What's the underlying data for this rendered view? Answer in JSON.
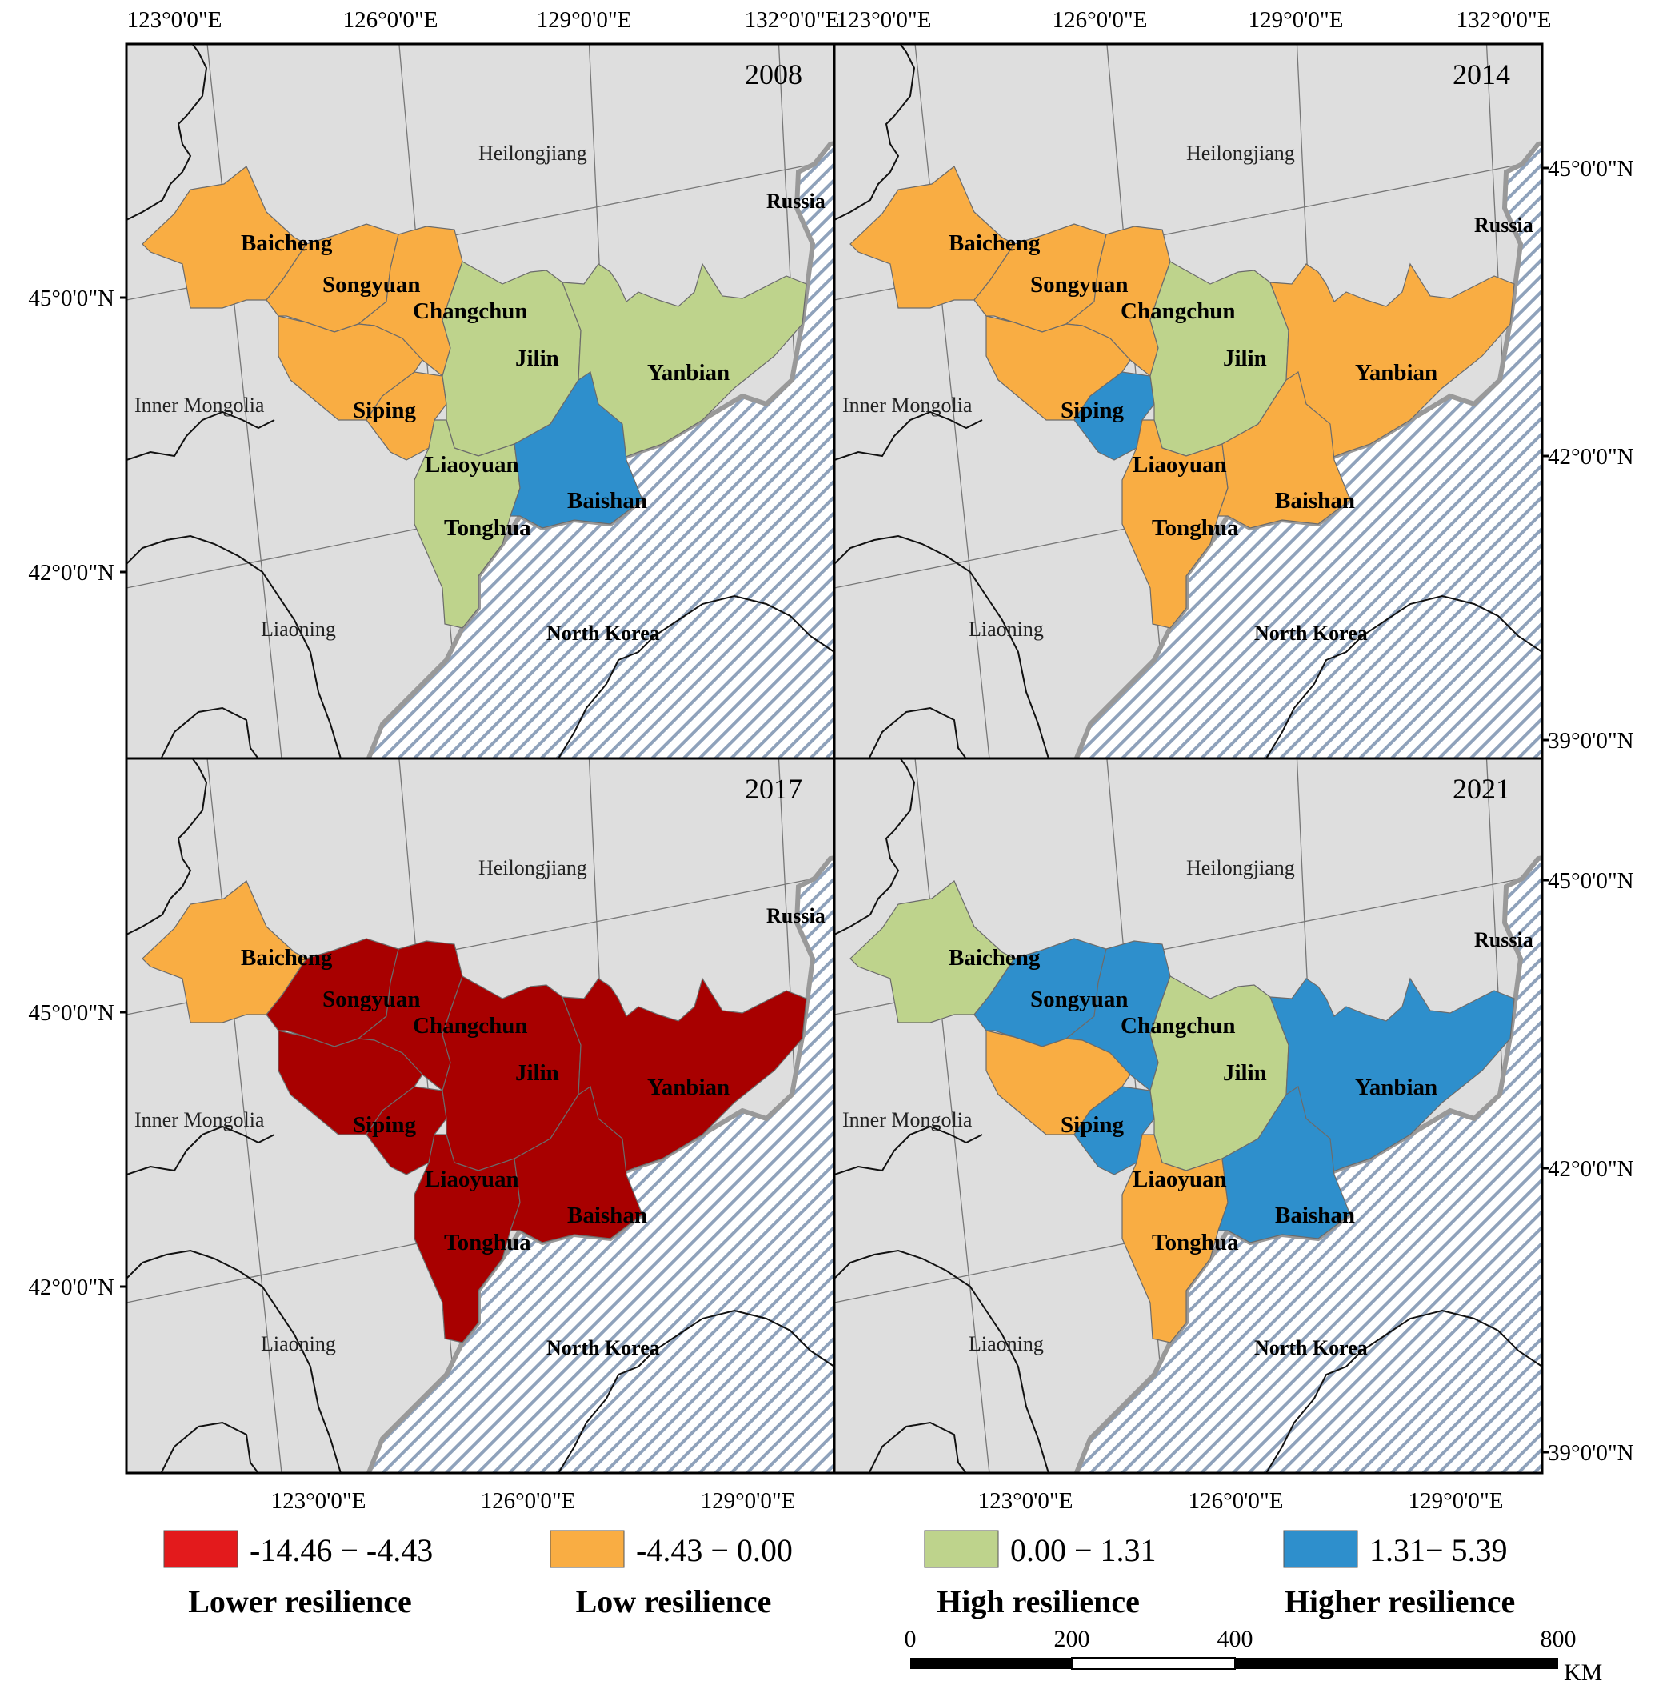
{
  "colors": {
    "lower": "#E31A1C",
    "low": "#F9AD43",
    "high": "#BED38C",
    "higher": "#2E8FCC",
    "lower_map_fill": "#A80000",
    "background": "#DEDEDE",
    "hatch": "#8FA2BB"
  },
  "panels": [
    {
      "year": "2008",
      "classes": {
        "Baicheng": "low",
        "Songyuan": "low",
        "Changchun": "low",
        "Siping": "low",
        "Liaoyuan": "low",
        "Jilin": "high",
        "Yanbian": "high",
        "Tonghua": "high",
        "Baishan": "higher"
      }
    },
    {
      "year": "2014",
      "classes": {
        "Baicheng": "low",
        "Songyuan": "low",
        "Changchun": "low",
        "Siping": "low",
        "Liaoyuan": "higher",
        "Jilin": "high",
        "Yanbian": "low",
        "Tonghua": "low",
        "Baishan": "low"
      }
    },
    {
      "year": "2017",
      "classes": {
        "Baicheng": "low",
        "Songyuan": "lower",
        "Changchun": "lower",
        "Siping": "lower",
        "Liaoyuan": "lower",
        "Jilin": "lower",
        "Yanbian": "lower",
        "Tonghua": "lower",
        "Baishan": "lower"
      }
    },
    {
      "year": "2021",
      "classes": {
        "Baicheng": "high",
        "Songyuan": "higher",
        "Changchun": "higher",
        "Siping": "low",
        "Liaoyuan": "higher",
        "Jilin": "high",
        "Yanbian": "higher",
        "Tonghua": "low",
        "Baishan": "higher"
      }
    }
  ],
  "city_labels": {
    "Baicheng": "Baicheng",
    "Songyuan": "Songyuan",
    "Changchun": "Changchun",
    "Jilin": "Jilin",
    "Yanbian": "Yanbian",
    "Siping": "Siping",
    "Liaoyuan": "Liaoyuan",
    "Baishan": "Baishan",
    "Tonghua": "Tonghua"
  },
  "region_labels": {
    "heilongjiang": "Heilongjiang",
    "inner_mongolia": "Inner Mongolia",
    "liaoning": "Liaoning",
    "north_korea": "North Korea",
    "russia": "Russia"
  },
  "axis_labels": {
    "top": [
      "123°0'0\"E",
      "126°0'0\"E",
      "129°0'0\"E",
      "132°0'0\"E"
    ],
    "bottom": [
      "123°0'0\"E",
      "126°0'0\"E",
      "129°0'0\"E"
    ],
    "left": [
      "45°0'0\"N",
      "42°0'0\"N"
    ],
    "right": [
      "45°0'0\"N",
      "42°0'0\"N",
      "39°0'0\"N"
    ]
  },
  "legend": [
    {
      "key": "lower",
      "range": "-14.46 − -4.43",
      "label": "Lower resilience"
    },
    {
      "key": "low",
      "range": "-4.43 − 0.00",
      "label": "Low resilience"
    },
    {
      "key": "high",
      "range": "0.00 − 1.31",
      "label": "High resilience"
    },
    {
      "key": "higher",
      "range": "1.31− 5.39",
      "label": "Higher resilience"
    }
  ],
  "scale_bar": {
    "ticks": [
      "0",
      "200",
      "400",
      "800"
    ],
    "unit": "KM"
  }
}
